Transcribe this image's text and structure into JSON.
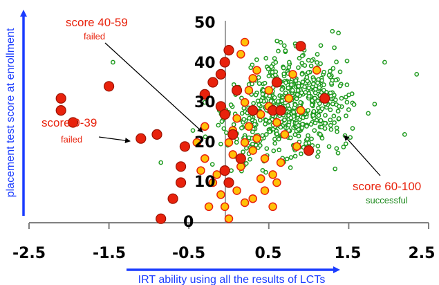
{
  "colors": {
    "failed_low": "#e8220c",
    "failed_low_stroke": "#9a1200",
    "failed_mid": "#ffc107",
    "failed_mid_stroke": "#e8220c",
    "successful": "#ffffff",
    "successful_stroke": "#1e9a1e",
    "axis_arrow": "#1a3cff",
    "annotation_red": "#e8220c",
    "annotation_green": "#1e8a1e"
  },
  "chart_data": {
    "type": "scatter",
    "xlabel": "IRT ability using all the results of LCTs",
    "ylabel": "placement test score at enrollment",
    "xlim": [
      -2.7,
      2.7
    ],
    "ylim": [
      0,
      50
    ],
    "x_ticks": [
      "-2.5",
      "-1.5",
      "-0.5",
      "0.5",
      "1.5",
      "2.5"
    ],
    "y_ticks": [
      "0",
      "10",
      "20",
      "30",
      "40",
      "50"
    ],
    "annotations": [
      {
        "label": "score 40-59",
        "sublabel": "failed"
      },
      {
        "label": "score 0-39",
        "sublabel": "failed"
      },
      {
        "label": "score 60-100",
        "sublabel": "successful"
      }
    ],
    "series": [
      {
        "name": "score 0-39",
        "points": [
          [
            -2.1,
            31
          ],
          [
            -1.95,
            25
          ],
          [
            -2.1,
            28
          ],
          [
            -1.5,
            34
          ],
          [
            -1.1,
            21
          ],
          [
            -0.85,
            1
          ],
          [
            -0.7,
            6
          ],
          [
            -0.6,
            10
          ],
          [
            -0.9,
            22
          ],
          [
            -0.6,
            14
          ],
          [
            -0.55,
            19
          ],
          [
            -0.05,
            40
          ],
          [
            0.0,
            43
          ],
          [
            -0.1,
            37
          ],
          [
            -0.2,
            35
          ],
          [
            -0.3,
            32
          ],
          [
            -0.1,
            29
          ],
          [
            -0.05,
            27
          ],
          [
            -0.05,
            13
          ],
          [
            0.0,
            10
          ],
          [
            0.05,
            22
          ],
          [
            0.1,
            33
          ],
          [
            0.3,
            28
          ],
          [
            0.6,
            35
          ],
          [
            0.55,
            28
          ],
          [
            0.65,
            28
          ],
          [
            0.9,
            44
          ],
          [
            1.0,
            18
          ],
          [
            1.2,
            31
          ],
          [
            0.15,
            16
          ]
        ]
      },
      {
        "name": "score 40-59",
        "points": [
          [
            -0.4,
            20
          ],
          [
            -0.35,
            13
          ],
          [
            -0.3,
            16
          ],
          [
            -0.2,
            10
          ],
          [
            -0.15,
            12
          ],
          [
            -0.1,
            7
          ],
          [
            -0.05,
            4
          ],
          [
            0.0,
            1
          ],
          [
            0.05,
            23
          ],
          [
            0.1,
            26
          ],
          [
            0.2,
            20
          ],
          [
            0.25,
            24
          ],
          [
            0.3,
            18
          ],
          [
            0.35,
            21
          ],
          [
            0.4,
            27
          ],
          [
            0.45,
            16
          ],
          [
            0.5,
            29
          ],
          [
            0.55,
            12
          ],
          [
            0.6,
            25
          ],
          [
            0.2,
            30
          ],
          [
            0.25,
            33
          ],
          [
            0.3,
            36
          ],
          [
            0.35,
            38
          ],
          [
            0.15,
            14
          ],
          [
            0.1,
            8
          ],
          [
            0.2,
            5
          ],
          [
            0.45,
            8
          ],
          [
            0.5,
            33
          ],
          [
            0.6,
            10
          ],
          [
            0.7,
            22
          ],
          [
            0.75,
            31
          ],
          [
            0.8,
            37
          ],
          [
            0.85,
            19
          ],
          [
            0.9,
            28
          ],
          [
            0.4,
            11
          ],
          [
            -0.25,
            4
          ],
          [
            -0.3,
            24
          ],
          [
            0.15,
            42
          ],
          [
            0.2,
            45
          ],
          [
            1.1,
            38
          ],
          [
            0.05,
            17
          ],
          [
            0.3,
            6
          ],
          [
            0.55,
            4
          ],
          [
            0.0,
            20
          ],
          [
            0.65,
            15
          ]
        ]
      }
    ]
  }
}
